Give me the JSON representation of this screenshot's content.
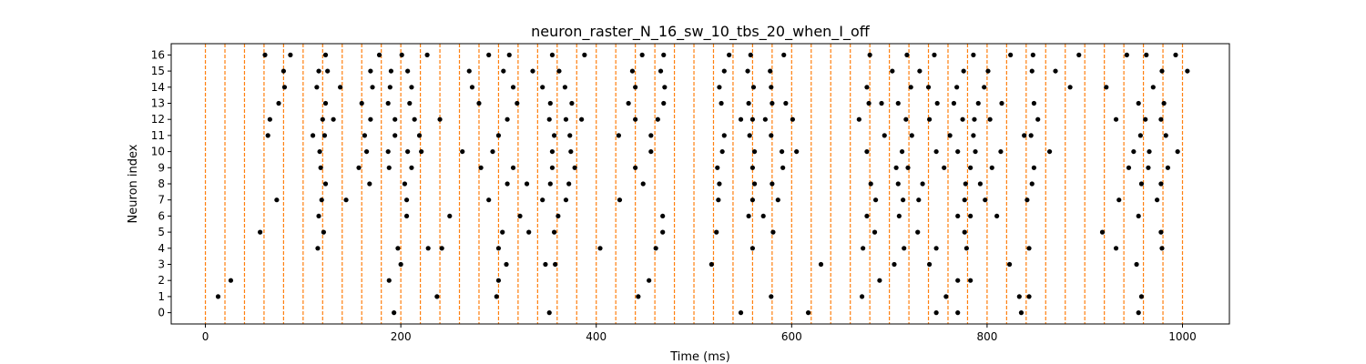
{
  "chart_data": {
    "type": "scatter",
    "title": "neuron_raster_N_16_sw_10_tbs_20_when_I_off",
    "xlabel": "Time (ms)",
    "ylabel": "Neuron index",
    "xlim": [
      -35,
      1048
    ],
    "ylim": [
      -0.7,
      16.7
    ],
    "xticks": [
      0,
      200,
      400,
      600,
      800,
      1000
    ],
    "yticks": [
      0,
      1,
      2,
      3,
      4,
      5,
      6,
      7,
      8,
      9,
      10,
      11,
      12,
      13,
      14,
      15,
      16
    ],
    "grid": false,
    "marker_color": "#000000",
    "vline_color": "#ff7f0e",
    "vlines_x": [
      0,
      20,
      40,
      60,
      80,
      100,
      120,
      140,
      160,
      180,
      200,
      220,
      240,
      260,
      280,
      300,
      320,
      340,
      360,
      380,
      400,
      420,
      440,
      460,
      480,
      500,
      520,
      540,
      560,
      580,
      600,
      620,
      640,
      660,
      680,
      700,
      720,
      740,
      760,
      780,
      800,
      820,
      840,
      860,
      880,
      900,
      920,
      940,
      960,
      980,
      1000
    ],
    "spikes": [
      {
        "neuron": 0,
        "times": [
          193,
          352,
          548,
          617,
          748,
          770,
          835,
          955
        ]
      },
      {
        "neuron": 1,
        "times": [
          13,
          237,
          298,
          443,
          579,
          672,
          758,
          833,
          843,
          958
        ]
      },
      {
        "neuron": 2,
        "times": [
          26,
          188,
          300,
          454,
          690,
          770,
          783
        ]
      },
      {
        "neuron": 3,
        "times": [
          200,
          308,
          348,
          358,
          518,
          630,
          705,
          741,
          823,
          953
        ]
      },
      {
        "neuron": 4,
        "times": [
          115,
          197,
          228,
          242,
          300,
          404,
          461,
          560,
          673,
          715,
          748,
          779,
          843,
          932,
          979
        ]
      },
      {
        "neuron": 5,
        "times": [
          56,
          121,
          304,
          331,
          357,
          468,
          523,
          581,
          685,
          729,
          777,
          918,
          978
        ]
      },
      {
        "neuron": 6,
        "times": [
          116,
          206,
          250,
          322,
          361,
          468,
          556,
          571,
          677,
          710,
          770,
          783,
          810,
          955
        ]
      },
      {
        "neuron": 7,
        "times": [
          73,
          119,
          144,
          206,
          290,
          345,
          369,
          424,
          525,
          560,
          586,
          686,
          714,
          730,
          777,
          798,
          841,
          935,
          974
        ]
      },
      {
        "neuron": 8,
        "times": [
          123,
          168,
          204,
          309,
          329,
          353,
          372,
          448,
          526,
          562,
          580,
          681,
          709,
          734,
          778,
          793,
          846,
          958,
          978
        ]
      },
      {
        "neuron": 9,
        "times": [
          118,
          157,
          188,
          211,
          282,
          315,
          355,
          378,
          440,
          524,
          560,
          591,
          707,
          719,
          756,
          783,
          805,
          848,
          945,
          965,
          985
        ]
      },
      {
        "neuron": 10,
        "times": [
          117,
          165,
          187,
          207,
          221,
          263,
          294,
          355,
          374,
          456,
          529,
          562,
          590,
          605,
          677,
          713,
          748,
          770,
          788,
          814,
          864,
          950,
          966,
          995
        ]
      },
      {
        "neuron": 11,
        "times": [
          64,
          110,
          122,
          163,
          194,
          219,
          300,
          357,
          373,
          423,
          456,
          531,
          557,
          579,
          695,
          723,
          762,
          786,
          838,
          845,
          957,
          983
        ]
      },
      {
        "neuron": 12,
        "times": [
          66,
          120,
          131,
          169,
          194,
          214,
          240,
          309,
          352,
          369,
          385,
          440,
          463,
          548,
          560,
          573,
          601,
          669,
          717,
          741,
          775,
          787,
          803,
          852,
          932,
          962,
          978
        ]
      },
      {
        "neuron": 13,
        "times": [
          75,
          123,
          160,
          187,
          209,
          280,
          319,
          353,
          375,
          433,
          469,
          528,
          556,
          580,
          594,
          679,
          692,
          709,
          749,
          766,
          791,
          815,
          848,
          955,
          981
        ]
      },
      {
        "neuron": 14,
        "times": [
          81,
          114,
          138,
          171,
          189,
          211,
          273,
          315,
          345,
          368,
          440,
          470,
          526,
          561,
          579,
          677,
          722,
          740,
          769,
          797,
          885,
          922,
          970
        ]
      },
      {
        "neuron": 15,
        "times": [
          80,
          116,
          125,
          169,
          190,
          207,
          270,
          305,
          335,
          362,
          437,
          466,
          531,
          555,
          578,
          703,
          731,
          776,
          801,
          846,
          870,
          979,
          1005
        ]
      },
      {
        "neuron": 16,
        "times": [
          61,
          87,
          123,
          178,
          201,
          227,
          290,
          311,
          355,
          388,
          447,
          469,
          536,
          558,
          592,
          680,
          718,
          746,
          786,
          824,
          847,
          894,
          943,
          963,
          993
        ]
      }
    ]
  }
}
